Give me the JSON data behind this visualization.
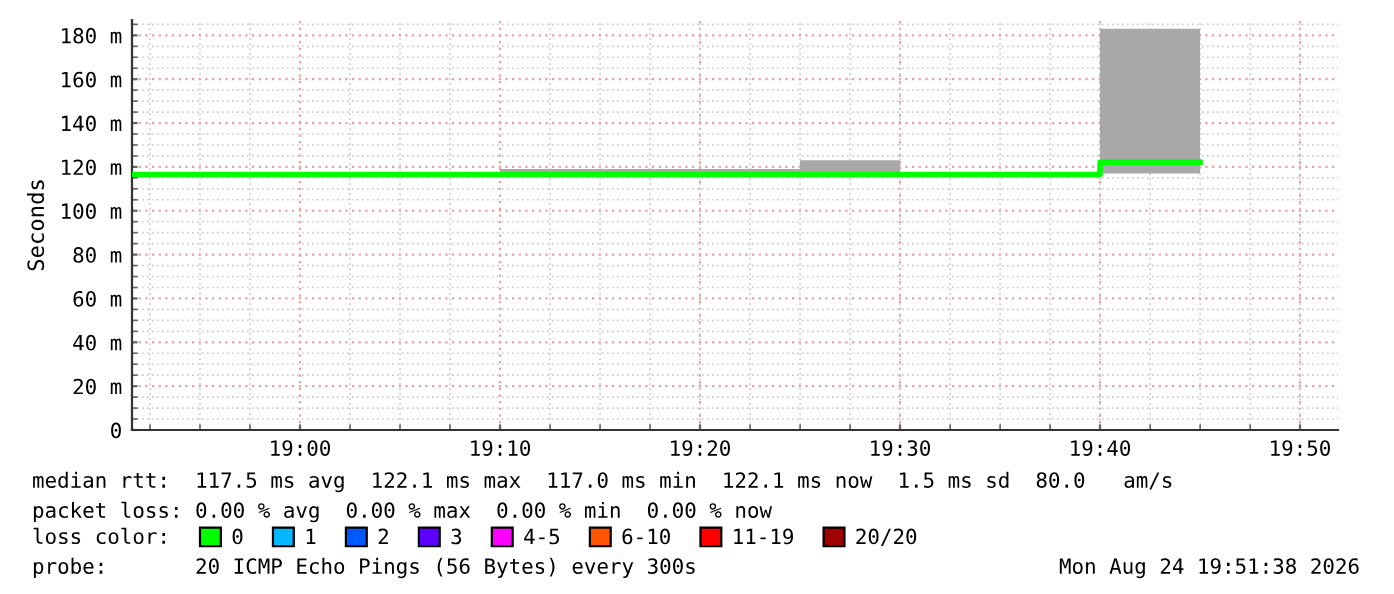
{
  "chart_data": {
    "type": "step",
    "ylabel": "Seconds",
    "x": [
      18.86,
      19.1667,
      19.4167,
      19.5,
      19.6667,
      19.75
    ],
    "series": [
      {
        "name": "0",
        "color": "#00ff00",
        "values": [
          116.5,
          116.5,
          116.5,
          116.5,
          122.1,
          122.1
        ],
        "lower": [
          116,
          116,
          116,
          116,
          117,
          117
        ],
        "upper": [
          117,
          119,
          123,
          117.5,
          183,
          183
        ]
      },
      {
        "name": "1",
        "color": "#00b8ff",
        "values": [
          null,
          null,
          null,
          null,
          null,
          null
        ]
      },
      {
        "name": "2",
        "color": "#0059ff",
        "values": [
          null,
          null,
          null,
          null,
          null,
          null
        ]
      },
      {
        "name": "3",
        "color": "#5e00ff",
        "values": [
          null,
          null,
          null,
          null,
          null,
          null
        ]
      },
      {
        "name": "4-5",
        "color": "#ff00ff",
        "values": [
          null,
          null,
          null,
          null,
          null,
          null
        ]
      },
      {
        "name": "6-10",
        "color": "#ff5500",
        "values": [
          null,
          null,
          null,
          null,
          null,
          null
        ]
      },
      {
        "name": "11-19",
        "color": "#ff0000",
        "values": [
          null,
          null,
          null,
          null,
          null,
          null
        ]
      },
      {
        "name": "20/20",
        "color": "#a10000",
        "values": [
          null,
          null,
          null,
          null,
          null,
          null
        ]
      }
    ],
    "legend": "bottom",
    "legend_title": "loss color:",
    "xlim": [
      18.86,
      19.865
    ],
    "xticks": [
      {
        "value": 19.0,
        "label": "19:00"
      },
      {
        "value": 19.1667,
        "label": "19:10"
      },
      {
        "value": 19.3333,
        "label": "19:20"
      },
      {
        "value": 19.5,
        "label": "19:30"
      },
      {
        "value": 19.6667,
        "label": "19:40"
      },
      {
        "value": 19.8333,
        "label": "19:50"
      }
    ],
    "ylim": [
      0,
      187
    ],
    "yticks": [
      0,
      {
        "value": 20,
        "label": "20 m"
      },
      {
        "value": 40,
        "label": "40 m"
      },
      {
        "value": 60,
        "label": "60 m"
      },
      {
        "value": 80,
        "label": "80 m"
      },
      {
        "value": 100,
        "label": "100 m"
      },
      {
        "value": 120,
        "label": "120 m"
      },
      {
        "value": 140,
        "label": "140 m"
      },
      {
        "value": 160,
        "label": "160 m"
      },
      {
        "value": 180,
        "label": "180 m"
      }
    ],
    "grid": true,
    "annotations": [
      "median rtt:  117.5 ms avg  122.1 ms max  117.0 ms min  122.1 ms now  1.5 ms sd  80.0   am/s",
      "packet loss: 0.00 % avg  0.00 % max  0.00 % min  0.00 % now",
      "probe:       20 ICMP Echo Pings (56 Bytes) every 300s",
      "Mon Aug 24 19:51:38 2026"
    ]
  }
}
